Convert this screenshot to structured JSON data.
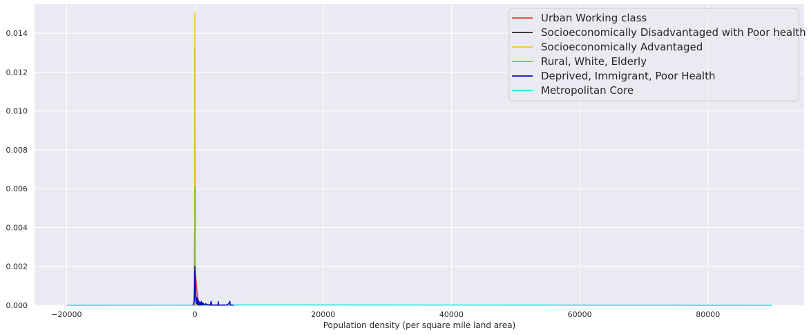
{
  "chart_data": {
    "type": "line",
    "title": "",
    "xlabel": "Population density (per square mile land area)",
    "ylabel": "",
    "xlim": [
      -25000,
      95000
    ],
    "ylim": [
      0,
      0.0155
    ],
    "xticks": [
      -20000,
      0,
      20000,
      40000,
      60000,
      80000
    ],
    "yticks": [
      0.0,
      0.002,
      0.004,
      0.006,
      0.008,
      0.01,
      0.012,
      0.014
    ],
    "xtick_labels": [
      "−20000",
      "0",
      "20000",
      "40000",
      "60000",
      "80000"
    ],
    "ytick_labels": [
      "0.000",
      "0.002",
      "0.004",
      "0.006",
      "0.008",
      "0.010",
      "0.012",
      "0.014"
    ],
    "grid": true,
    "legend_position": "top-right",
    "series": [
      {
        "name": "Urban Working class",
        "color": "#e8413b",
        "x": [
          -200,
          -50,
          0,
          50,
          100,
          200,
          300,
          400,
          500,
          700,
          1000,
          1500,
          2500,
          5000
        ],
        "y": [
          0,
          0.0005,
          0.0013,
          0.0019,
          0.0016,
          0.0012,
          0.0008,
          0.0005,
          0.0003,
          0.00015,
          0.0001,
          5e-05,
          2e-05,
          1e-05
        ]
      },
      {
        "name": "Socioeconomically Disadvantaged with Poor health",
        "color": "#262626",
        "x": [
          -100,
          -30,
          0,
          20,
          50,
          80,
          150,
          300,
          600
        ],
        "y": [
          0,
          0.004,
          0.0132,
          0.009,
          0.004,
          0.0015,
          0.0005,
          0.0001,
          0
        ]
      },
      {
        "name": "Socioeconomically Advantaged",
        "color": "#f5c518",
        "x": [
          -80,
          -30,
          0,
          20,
          40,
          70,
          120,
          250
        ],
        "y": [
          0,
          0.005,
          0.0151,
          0.011,
          0.005,
          0.0015,
          0.0003,
          0
        ]
      },
      {
        "name": "Rural, White, Elderly",
        "color": "#7bc043",
        "x": [
          -60,
          -20,
          0,
          15,
          40,
          80,
          200
        ],
        "y": [
          0,
          0.002,
          0.0061,
          0.0045,
          0.0015,
          0.0003,
          0
        ]
      },
      {
        "name": "Deprived, Immigrant, Poor Health",
        "color": "#0a0ac0",
        "x": [
          -300,
          -100,
          0,
          80,
          150,
          200,
          250,
          300,
          350,
          400,
          450,
          500,
          550,
          600,
          700,
          800,
          900,
          1000,
          1050,
          1100,
          1200,
          1300,
          1500,
          1700,
          2000,
          2400,
          2500,
          2550,
          2600,
          2800,
          3200,
          3600,
          3650,
          3700,
          4000,
          5000,
          5400,
          5450,
          5500,
          5800,
          6000
        ],
        "y": [
          0,
          0.0002,
          0.002,
          0.0008,
          0.0003,
          0.00035,
          0.0001,
          0.0004,
          0.0001,
          0.00035,
          5e-05,
          0.00025,
          5e-05,
          0.0002,
          2e-05,
          0.00015,
          2e-05,
          0.0002,
          2e-05,
          0.00015,
          2e-05,
          0.0001,
          2e-05,
          8e-05,
          2e-05,
          1e-05,
          0.00015,
          0.0002,
          1e-05,
          1e-05,
          1e-05,
          1e-05,
          0.00018,
          1e-05,
          1e-05,
          1e-05,
          0.00012,
          0.0002,
          1e-05,
          1e-05,
          0
        ]
      },
      {
        "name": "Metropolitan Core",
        "color": "#1ee4ee",
        "x": [
          -20000,
          0,
          10000,
          30000,
          50000,
          70000,
          90000
        ],
        "y": [
          0,
          5e-06,
          2e-05,
          1.5e-05,
          1e-05,
          5e-06,
          0
        ]
      }
    ]
  }
}
